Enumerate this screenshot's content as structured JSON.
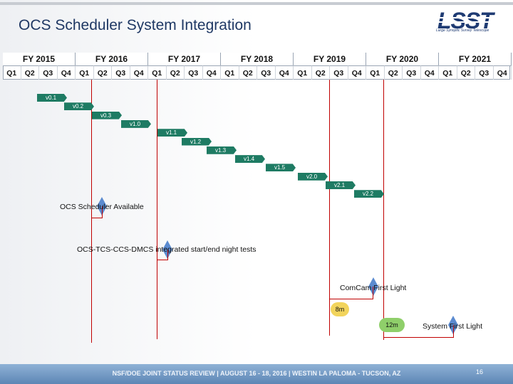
{
  "title": "OCS Scheduler System Integration",
  "logo": {
    "text": "LSST",
    "subtitle": "Large Synoptic Survey Telescope"
  },
  "fiscal_years": [
    "FY 2015",
    "FY 2016",
    "FY 2017",
    "FY 2018",
    "FY 2019",
    "FY 2020",
    "FY 2021"
  ],
  "quarters": [
    "Q1",
    "Q2",
    "Q3",
    "Q4"
  ],
  "versions": [
    "v0.1",
    "v0.2",
    "v0.3",
    "v1.0",
    "v1.1",
    "v1.2",
    "v1.3",
    "v1.4",
    "v1.5",
    "v2.0",
    "v2.1",
    "v2.2"
  ],
  "milestones": {
    "ocs_available": "OCS Scheduler Available",
    "integrated_tests": "OCS-TCS-CCS-DMCS integrated start/end night tests",
    "comcam": "ComCam First Light",
    "system_first_light": "System First Light"
  },
  "durations": {
    "d8": "8m",
    "d12": "12m"
  },
  "footer": {
    "text": "NSF/DOE JOINT STATUS REVIEW | AUGUST 16 - 18, 2016 | WESTIN LA PALOMA - TUCSON, AZ",
    "page": "16"
  },
  "colors": {
    "title": "#1f3864",
    "version_bar": "#1e7b63",
    "milestone": "#5b8bd0",
    "vline": "#c00000"
  }
}
